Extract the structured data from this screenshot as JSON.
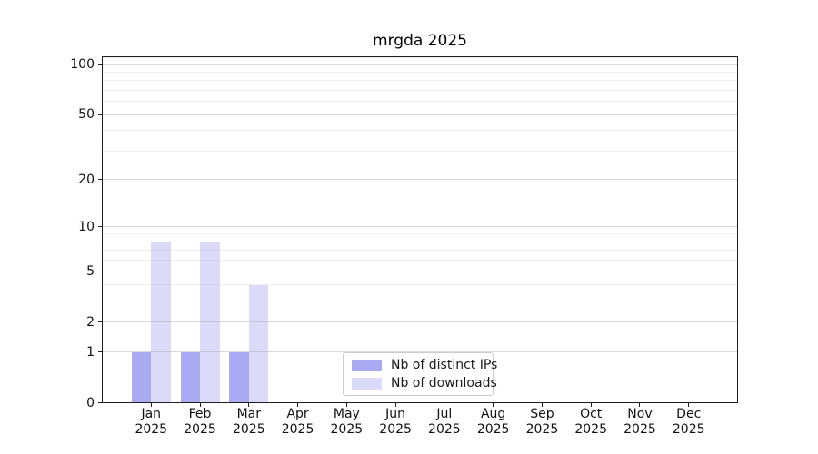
{
  "chart_data": {
    "type": "bar",
    "title": "mrgda 2025",
    "categories": [
      "Jan",
      "Feb",
      "Mar",
      "Apr",
      "May",
      "Jun",
      "Jul",
      "Aug",
      "Sep",
      "Oct",
      "Nov",
      "Dec"
    ],
    "category_year": "2025",
    "series": [
      {
        "name": "Nb of distinct IPs",
        "color": "#aaaaf2",
        "values": [
          1,
          1,
          1,
          0,
          0,
          0,
          0,
          0,
          0,
          0,
          0,
          0
        ]
      },
      {
        "name": "Nb of downloads",
        "color": "#dbdbf9",
        "values": [
          8,
          8,
          4,
          0,
          0,
          0,
          0,
          0,
          0,
          0,
          0,
          0
        ]
      }
    ],
    "yscale": "log1p",
    "ylim": [
      0,
      112
    ],
    "yticks": [
      100,
      50,
      20,
      10,
      5,
      2,
      1,
      0
    ],
    "minor_gridlines": [
      3,
      4,
      6,
      7,
      8,
      9,
      30,
      40,
      60,
      70,
      80,
      90,
      110
    ],
    "grid": "on",
    "legend_position": "lower center",
    "colors": {
      "major_grid": "rgba(176,176,176,0.5)",
      "minor_grid": "rgba(176,176,176,0.2)",
      "spine": "#1f1f1f",
      "text": "#111111",
      "legend_border": "#cccccc"
    }
  }
}
